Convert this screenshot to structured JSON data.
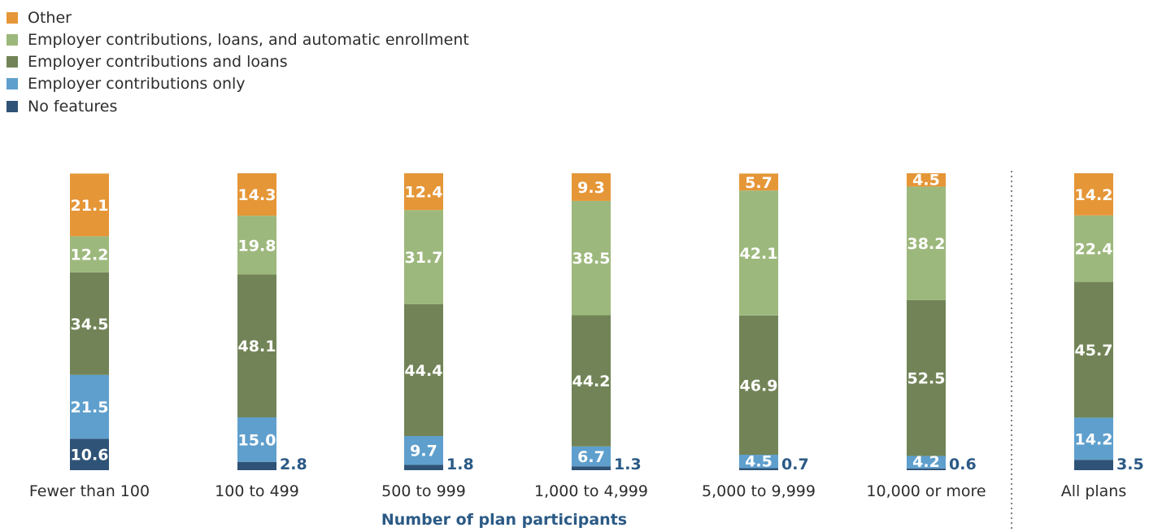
{
  "chart_data": {
    "type": "bar",
    "stacked": true,
    "xlabel": "Number of plan participants",
    "categories": [
      "Fewer than 100",
      "100 to 499",
      "500 to 999",
      "1,000 to 4,999",
      "5,000 to 9,999",
      "10,000 or more",
      "All plans"
    ],
    "series": [
      {
        "name": "No features",
        "color": "#2f5377",
        "values": [
          10.6,
          2.8,
          1.8,
          1.3,
          0.7,
          0.6,
          3.5
        ]
      },
      {
        "name": "Employer contributions only",
        "color": "#5f9fcd",
        "values": [
          21.5,
          15.0,
          9.7,
          6.7,
          4.5,
          4.2,
          14.2
        ]
      },
      {
        "name": "Employer contributions and loans",
        "color": "#728457",
        "values": [
          34.5,
          48.1,
          44.4,
          44.2,
          46.9,
          52.5,
          45.7
        ]
      },
      {
        "name": "Employer contributions, loans, and automatic enrollment",
        "color": "#9db87d",
        "values": [
          12.2,
          19.8,
          31.7,
          38.5,
          42.1,
          38.2,
          22.4
        ]
      },
      {
        "name": "Other",
        "color": "#e59637",
        "values": [
          21.1,
          14.3,
          12.4,
          9.3,
          5.7,
          4.5,
          14.2
        ]
      }
    ],
    "value_label_format": "1 decimal",
    "value_label_color_inside": "#ffffff",
    "value_label_color_outside": "#2b5a86",
    "separator_before_category": "All plans",
    "ylim": [
      0,
      100
    ],
    "legend_position": "top-left",
    "legend_order": [
      "Other",
      "Employer contributions, loans, and automatic enrollment",
      "Employer contributions and loans",
      "Employer contributions only",
      "No features"
    ]
  }
}
